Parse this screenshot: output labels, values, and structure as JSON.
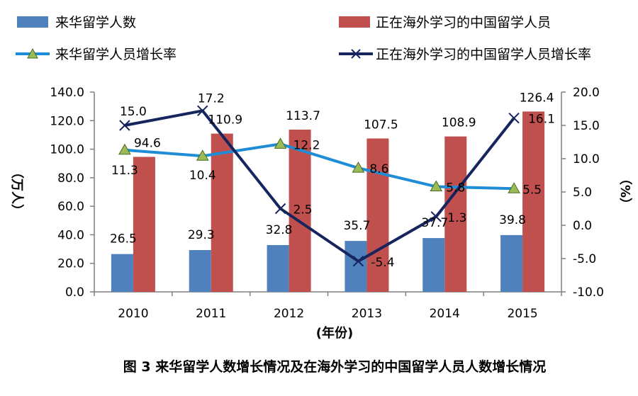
{
  "caption": "图 3 来华留学人数增长情况及在海外学习的中国留学人员人数增长情况",
  "legend": {
    "bar_foreign": "来华留学人数",
    "bar_overseas": "正在海外学习的中国留学人员",
    "line_foreign": "来华留学人员增长率",
    "line_overseas": "正在海外学习的中国留学人员增长率"
  },
  "colors": {
    "bar_foreign": "#4f81bd",
    "bar_overseas": "#c0504d",
    "line_foreign": "#1f8dd6",
    "line_foreign_marker": "#9bbb59",
    "line_overseas": "#17255e",
    "axis": "#7f7f7f",
    "text": "#000000"
  },
  "chart_data": {
    "type": "bar",
    "categories": [
      "2010",
      "2011",
      "2012",
      "2013",
      "2014",
      "2015"
    ],
    "xlabel": "(年份)",
    "ylabel_left": "（万人）",
    "ylabel_right": "（%）",
    "ylim_left": [
      0,
      140
    ],
    "ylim_right": [
      -10,
      20
    ],
    "yticks_left": [
      "0.0",
      "20.0",
      "40.0",
      "60.0",
      "80.0",
      "100.0",
      "120.0",
      "140.0"
    ],
    "yticks_right": [
      "-10.0",
      "-5.0",
      "0.0",
      "5.0",
      "10.0",
      "15.0",
      "20.0"
    ],
    "series": [
      {
        "name": "来华留学人数",
        "kind": "bar",
        "axis": "left",
        "values": [
          26.5,
          29.3,
          32.8,
          35.7,
          37.7,
          39.8
        ],
        "labels": [
          "26.5",
          "29.3",
          "32.8",
          "35.7",
          "37.7",
          "39.8"
        ]
      },
      {
        "name": "正在海外学习的中国留学人员",
        "kind": "bar",
        "axis": "left",
        "values": [
          94.6,
          110.9,
          113.7,
          107.5,
          108.9,
          126.4
        ],
        "labels": [
          "94.6",
          "110.9",
          "113.7",
          "107.5",
          "108.9",
          "126.4"
        ]
      },
      {
        "name": "来华留学人员增长率",
        "kind": "line",
        "axis": "right",
        "values": [
          11.3,
          10.4,
          12.2,
          8.6,
          5.8,
          5.5
        ],
        "labels": [
          "11.3",
          "10.4",
          "12.2",
          "8.6",
          "5.8",
          "5.5"
        ]
      },
      {
        "name": "正在海外学习的中国留学人员增长率",
        "kind": "line",
        "axis": "right",
        "values": [
          15.0,
          17.2,
          2.5,
          -5.4,
          1.3,
          16.1
        ],
        "labels": [
          "15.0",
          "17.2",
          "2.5",
          "-5.4",
          "1.3",
          "16.1"
        ]
      }
    ]
  }
}
